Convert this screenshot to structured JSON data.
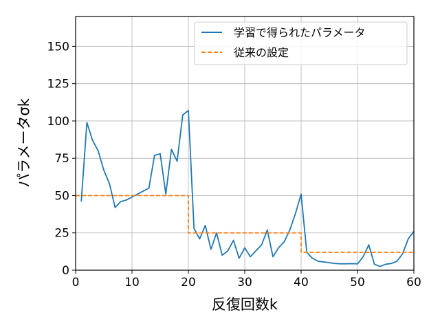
{
  "chart_data": {
    "type": "line",
    "xlabel": "反復回数k",
    "ylabel": "パラメータσk",
    "xlim": [
      0,
      60
    ],
    "ylim": [
      0,
      170
    ],
    "x_ticks": [
      "0",
      "10",
      "20",
      "30",
      "40",
      "50",
      "60"
    ],
    "y_ticks": [
      "0",
      "25",
      "50",
      "75",
      "100",
      "125",
      "150"
    ],
    "grid": true,
    "legend_position": "top-right",
    "series": [
      {
        "name": "学習で得られたパラメータ",
        "color": "#1f77b4",
        "style": "solid",
        "x": [
          1,
          2,
          3,
          4,
          5,
          6,
          7,
          8,
          9,
          10,
          11,
          12,
          13,
          14,
          15,
          16,
          17,
          18,
          19,
          20,
          21,
          22,
          23,
          24,
          25,
          26,
          27,
          28,
          29,
          30,
          31,
          32,
          33,
          34,
          35,
          36,
          37,
          38,
          39,
          40,
          41,
          42,
          43,
          44,
          45,
          46,
          47,
          48,
          49,
          50,
          51,
          52,
          53,
          54,
          55,
          56,
          57,
          58,
          59,
          60
        ],
        "values": [
          46,
          99,
          87,
          80,
          67,
          58,
          42,
          46,
          47,
          49,
          51,
          53,
          55,
          77,
          78,
          51,
          81,
          73,
          104,
          107,
          28,
          21,
          30,
          14,
          25,
          10,
          13,
          20,
          8,
          15,
          9,
          13,
          17,
          27,
          9,
          15,
          19,
          27,
          38,
          51,
          12,
          8,
          6,
          5.5,
          5,
          4.5,
          4.3,
          4.3,
          4.4,
          4.2,
          9,
          17,
          4,
          2.5,
          4,
          4.5,
          6,
          11,
          21,
          26
        ]
      },
      {
        "name": "従来の設定",
        "color": "#ff7f0e",
        "style": "dashed",
        "x": [
          0,
          20,
          20,
          40,
          40,
          60
        ],
        "values": [
          50,
          50,
          25,
          25,
          12,
          12
        ]
      }
    ]
  }
}
